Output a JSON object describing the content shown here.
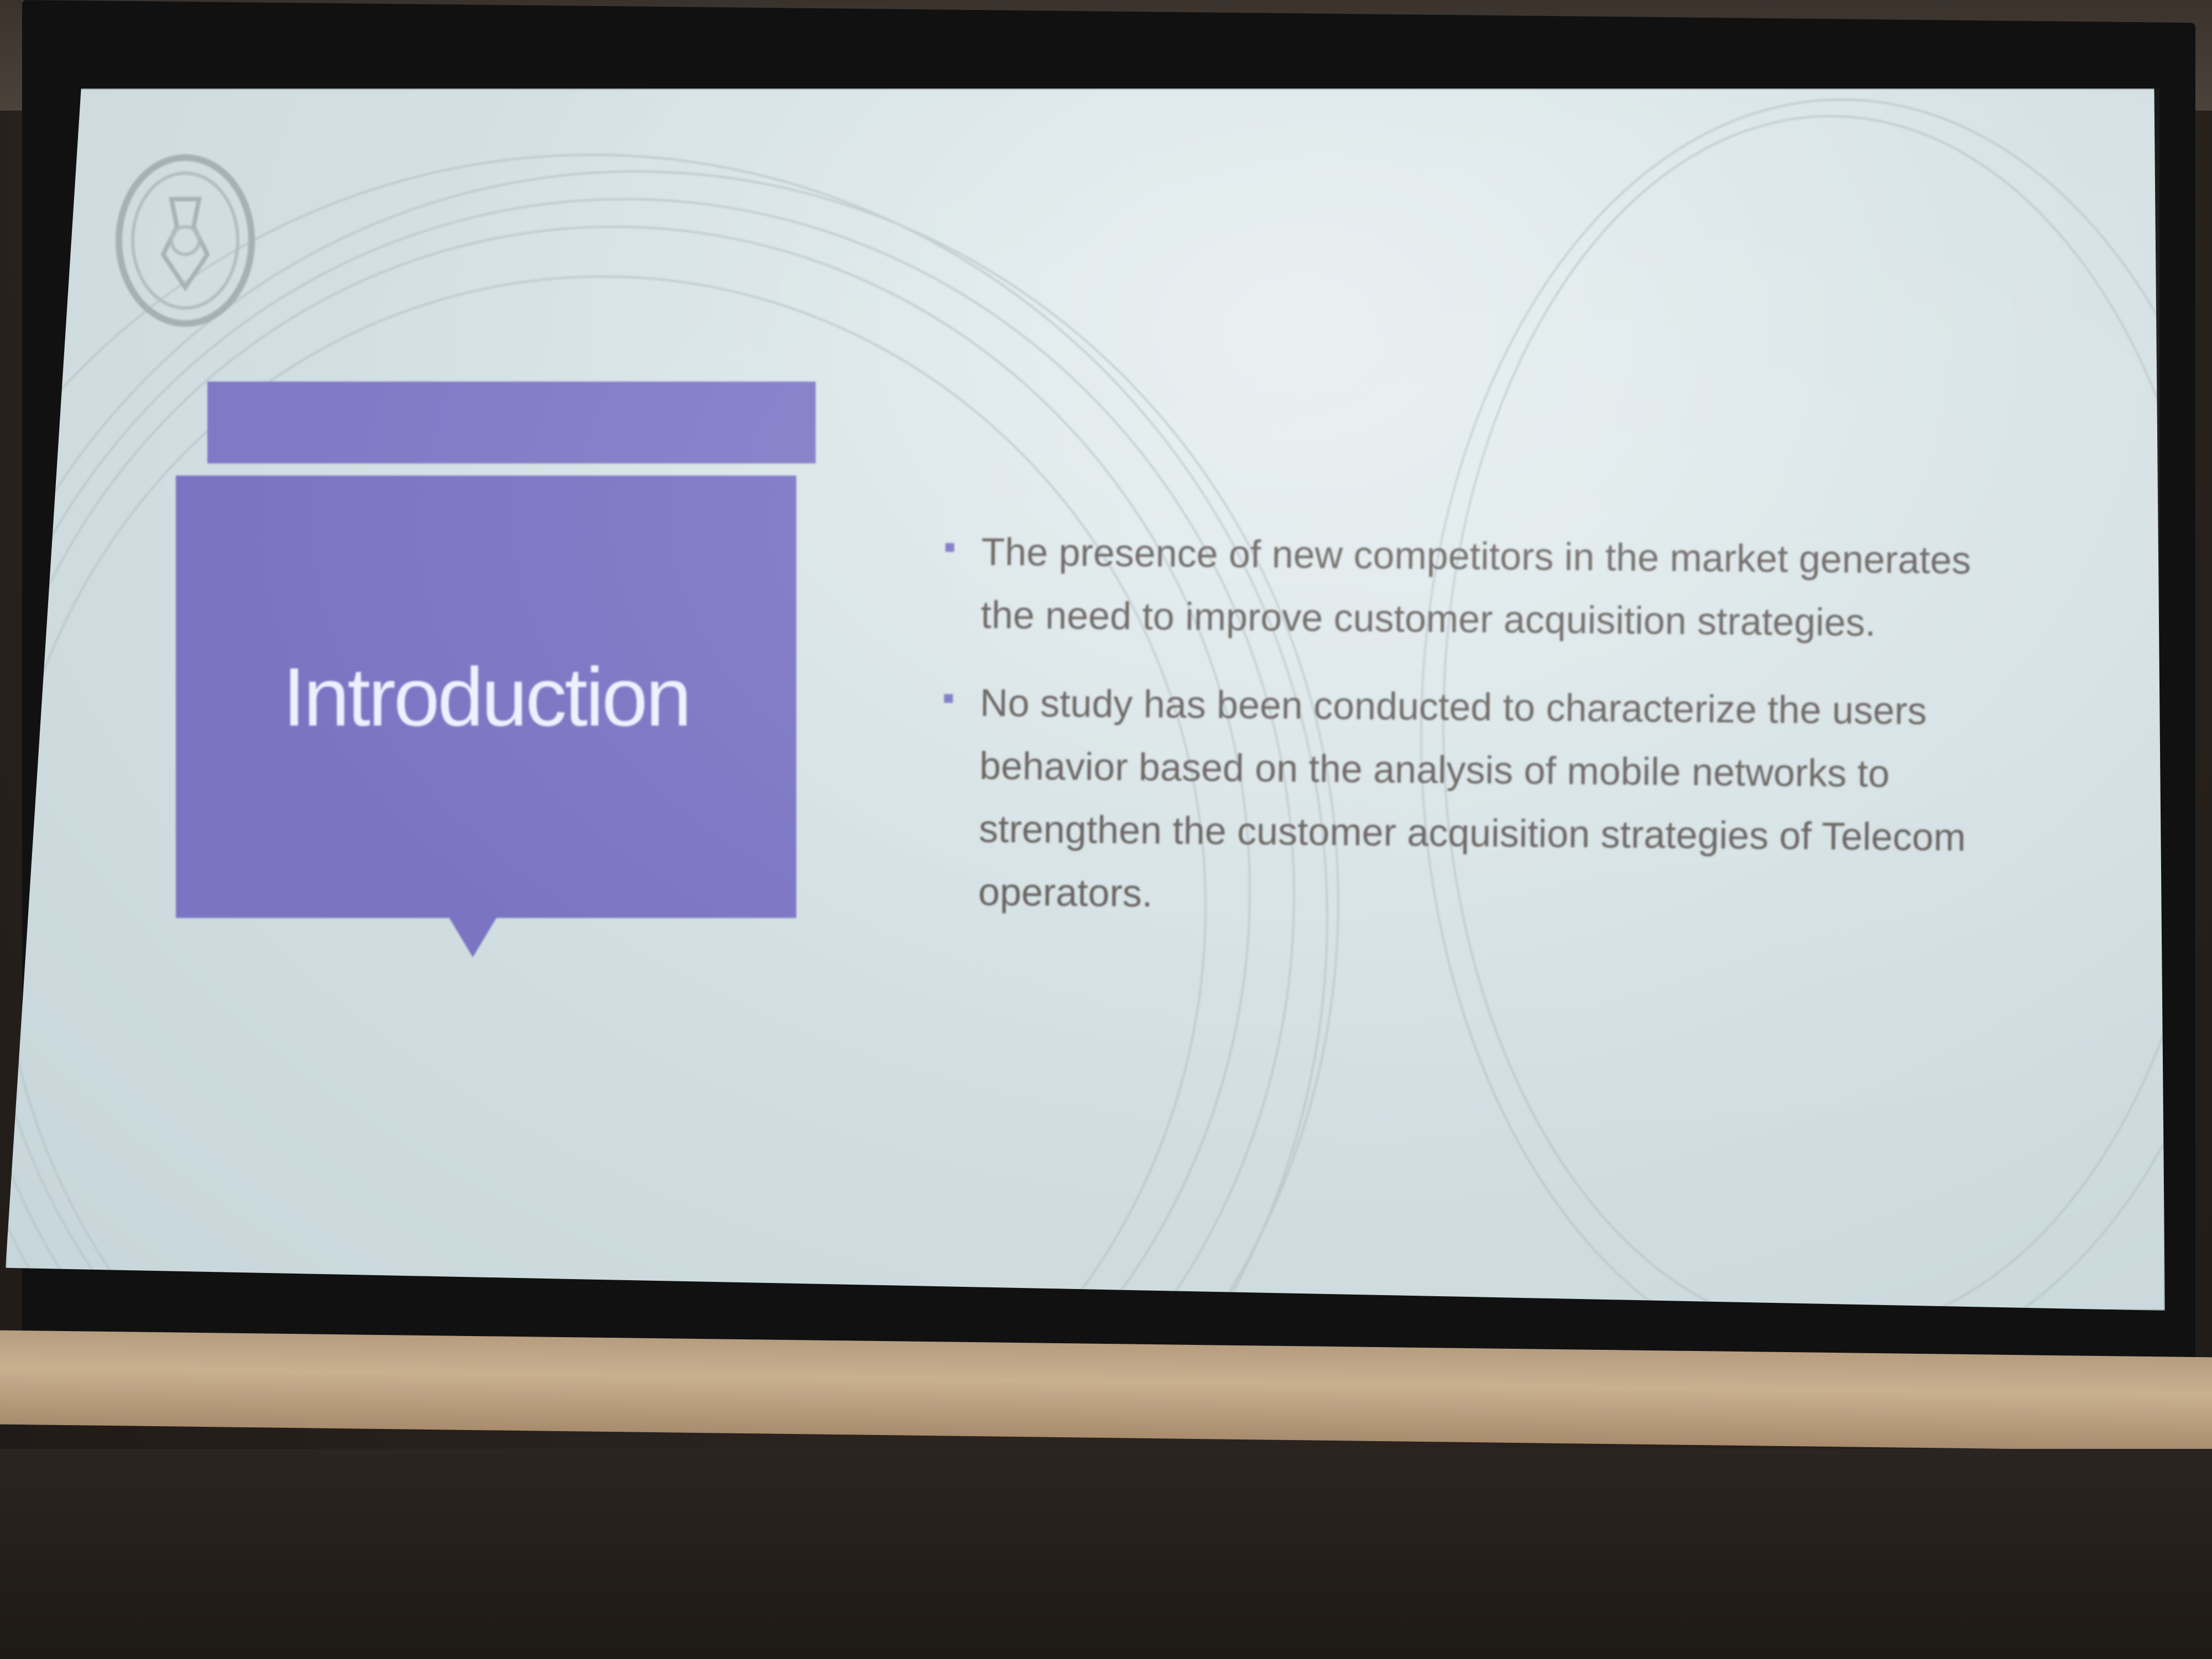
{
  "slide": {
    "title": "Introduction",
    "bullets": [
      "The presence of new competitors in the market generates the need to improve customer acquisition strategies.",
      "No study has been conducted to characterize the users behavior based on the analysis of mobile networks to strengthen the customer acquisition strategies of Telecom operators."
    ]
  },
  "colors": {
    "accent": "#7a74c3",
    "screen": "#d4e1e4",
    "text": "#5f5a57"
  },
  "icons": {
    "logo": "university-seal-icon",
    "bullet": "square-bullet-icon"
  }
}
